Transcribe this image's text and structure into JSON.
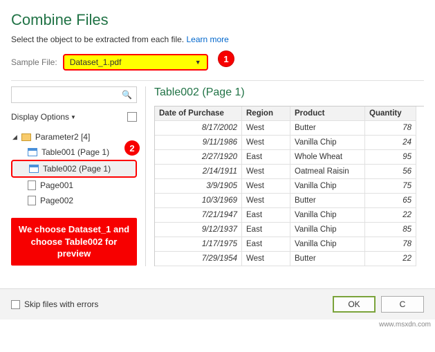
{
  "header": {
    "title": "Combine Files",
    "subtitle_prefix": "Select the object to be extracted from each file. ",
    "learn_more": "Learn more"
  },
  "sample_file": {
    "label": "Sample File:",
    "value": "Dataset_1.pdf",
    "highlight_bg": "#ffff00",
    "highlight_border": "#ff0000"
  },
  "badges": {
    "b1": "1",
    "b2": "2"
  },
  "left_panel": {
    "display_options_label": "Display Options",
    "root_label": "Parameter2 [4]",
    "items": [
      {
        "label": "Table001 (Page 1)",
        "icon": "table"
      },
      {
        "label": "Table002 (Page 1)",
        "icon": "table",
        "selected": true
      },
      {
        "label": "Page001",
        "icon": "page"
      },
      {
        "label": "Page002",
        "icon": "page"
      }
    ],
    "callout": "We choose Dataset_1 and choose Table002 for preview"
  },
  "preview": {
    "title": "Table002 (Page 1)",
    "columns": [
      "Date of Purchase",
      "Region",
      "Product",
      "Quantity"
    ],
    "rows": [
      [
        "8/17/2002",
        "West",
        "Butter",
        "78"
      ],
      [
        "9/11/1986",
        "West",
        "Vanilla Chip",
        "24"
      ],
      [
        "2/27/1920",
        "East",
        "Whole Wheat",
        "95"
      ],
      [
        "2/14/1911",
        "West",
        "Oatmeal Raisin",
        "56"
      ],
      [
        "3/9/1905",
        "West",
        "Vanilla Chip",
        "75"
      ],
      [
        "10/3/1969",
        "West",
        "Butter",
        "65"
      ],
      [
        "7/21/1947",
        "East",
        "Vanilla Chip",
        "22"
      ],
      [
        "9/12/1937",
        "East",
        "Vanilla Chip",
        "85"
      ],
      [
        "1/17/1975",
        "East",
        "Vanilla Chip",
        "78"
      ],
      [
        "7/29/1954",
        "West",
        "Butter",
        "22"
      ]
    ]
  },
  "footer": {
    "skip_label": "Skip files with errors",
    "ok_label": "OK",
    "cancel_label": "C"
  },
  "colors": {
    "accent_green": "#217346",
    "link_blue": "#0066cc",
    "badge_red": "#f70000",
    "border_gray": "#cccccc"
  },
  "watermark": "www.msxdn.com"
}
